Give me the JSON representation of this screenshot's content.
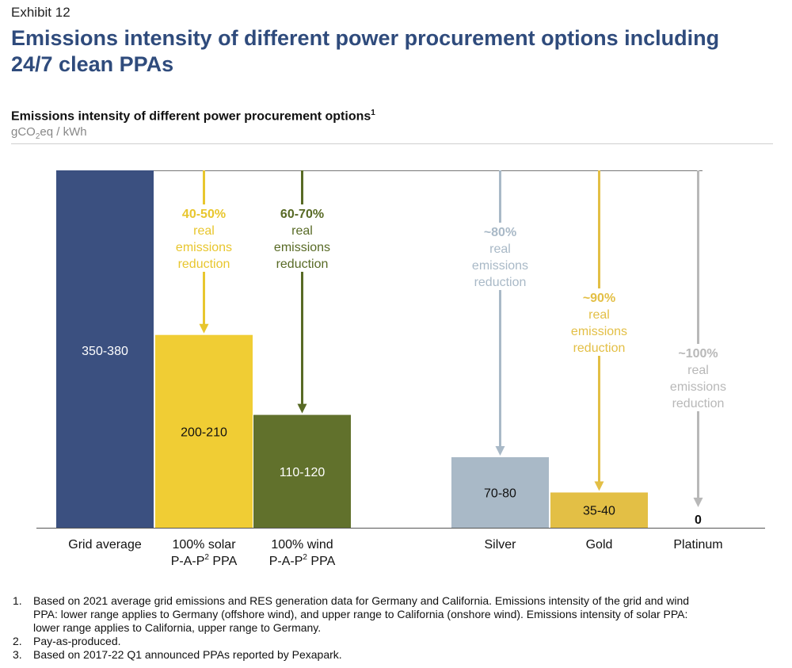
{
  "exhibit": "Exhibit 12",
  "title": "Emissions intensity of different power procurement options including 24/7 clean PPAs",
  "chart_data": {
    "type": "bar",
    "title": "Emissions intensity of different power procurement options",
    "title_footnote": "1",
    "unit": {
      "prefix": "gCO",
      "sub": "2",
      "suffix": "eq / kWh"
    },
    "ylim": [
      0,
      380
    ],
    "grid": false,
    "categories": [
      {
        "line1": "Grid average",
        "line2": ""
      },
      {
        "line1": "100% solar",
        "line2": "P-A-P",
        "sup": "2",
        "line2_end": " PPA"
      },
      {
        "line1": "100% wind",
        "line2": "P-A-P",
        "sup": "2",
        "line2_end": " PPA"
      },
      {
        "line1": "Silver",
        "line2": ""
      },
      {
        "line1": "Gold",
        "line2": ""
      },
      {
        "line1": "Platinum",
        "line2": ""
      }
    ],
    "values": [
      380,
      205,
      120,
      75,
      37.5,
      0
    ],
    "data_labels": [
      "350-380",
      "200-210",
      "110-120",
      "70-80",
      "35-40",
      "0"
    ],
    "colors": [
      "#3b5080",
      "#f0cd34",
      "#61712c",
      "#a9b9c7",
      "#e3bf45",
      "#b8b8b8"
    ],
    "reductions": [
      null,
      {
        "pct": "40-50%",
        "lines": [
          "real",
          "emissions",
          "reduction"
        ],
        "color": "#e8c62e"
      },
      {
        "pct": "60-70%",
        "lines": [
          "real",
          "emissions",
          "reduction"
        ],
        "color": "#586a25"
      },
      {
        "pct": "~80%",
        "lines": [
          "real",
          "emissions",
          "reduction"
        ],
        "color": "#a9b9c7"
      },
      {
        "pct": "~90%",
        "lines": [
          "real",
          "emissions",
          "reduction"
        ],
        "color": "#e3bf45"
      },
      {
        "pct": "~100%",
        "lines": [
          "real",
          "emissions",
          "reduction"
        ],
        "color": "#b8b8b8"
      }
    ]
  },
  "footnotes": [
    {
      "num": "1.",
      "lines": [
        "Based on 2021 average grid emissions and RES generation data for Germany and California. Emissions intensity of the grid and wind",
        "PPA: lower range applies to Germany (offshore wind), and upper range to California (onshore wind). Emissions intensity of solar PPA:",
        "lower range applies to California, upper range to Germany."
      ]
    },
    {
      "num": "2.",
      "lines": [
        "Pay-as-produced."
      ]
    },
    {
      "num": "3.",
      "lines": [
        "Based on 2017-22 Q1 announced PPAs reported by Pexapark."
      ]
    }
  ]
}
